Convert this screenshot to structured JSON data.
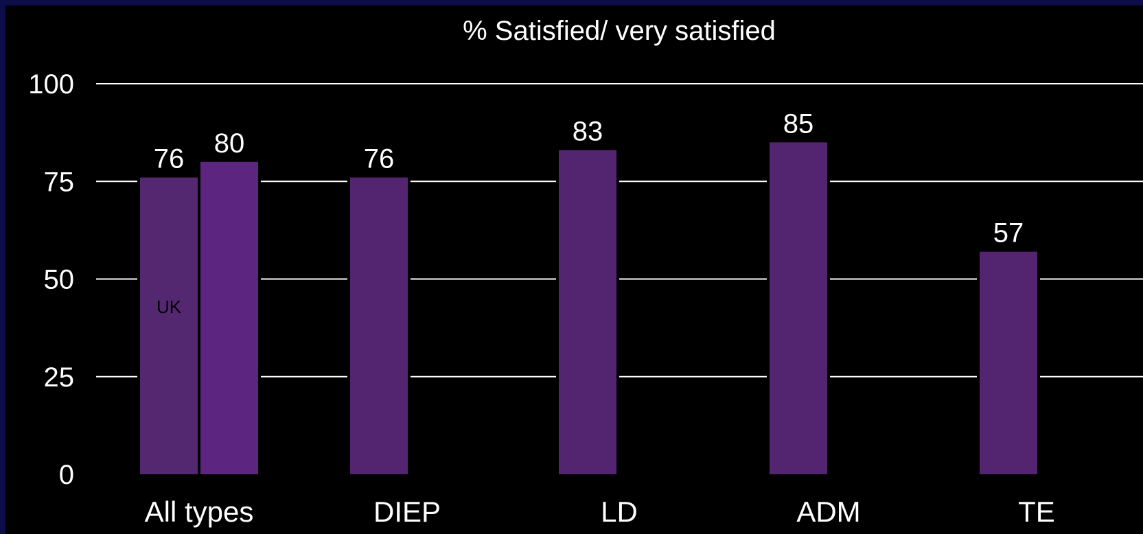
{
  "chart_data": {
    "type": "bar",
    "title": "% Satisfied/ very satisfied",
    "xlabel": "",
    "ylabel": "",
    "ylim": [
      0,
      100
    ],
    "yticks": [
      "0",
      "25",
      "50",
      "75",
      "100"
    ],
    "grid": true,
    "categories": [
      "All types",
      "DIEP",
      "LD",
      "ADM",
      "TE"
    ],
    "bars": [
      {
        "category": "All types",
        "value": 76,
        "label": "76",
        "inner_label": "UK",
        "color": "#532870"
      },
      {
        "category": "All types",
        "value": 80,
        "label": "80",
        "inner_label": "",
        "color": "#5c2680"
      },
      {
        "category": "DIEP",
        "value": 76,
        "label": "76",
        "inner_label": "",
        "color": "#532570"
      },
      {
        "category": "LD",
        "value": 83,
        "label": "83",
        "inner_label": "",
        "color": "#532570"
      },
      {
        "category": "ADM",
        "value": 85,
        "label": "85",
        "inner_label": "",
        "color": "#532570"
      },
      {
        "category": "TE",
        "value": 57,
        "label": "57",
        "inner_label": "",
        "color": "#532570"
      }
    ],
    "colors": {
      "background": "#000000",
      "border": "#0d0d4a",
      "gridline": "#ffffff",
      "text": "#ffffff"
    }
  }
}
